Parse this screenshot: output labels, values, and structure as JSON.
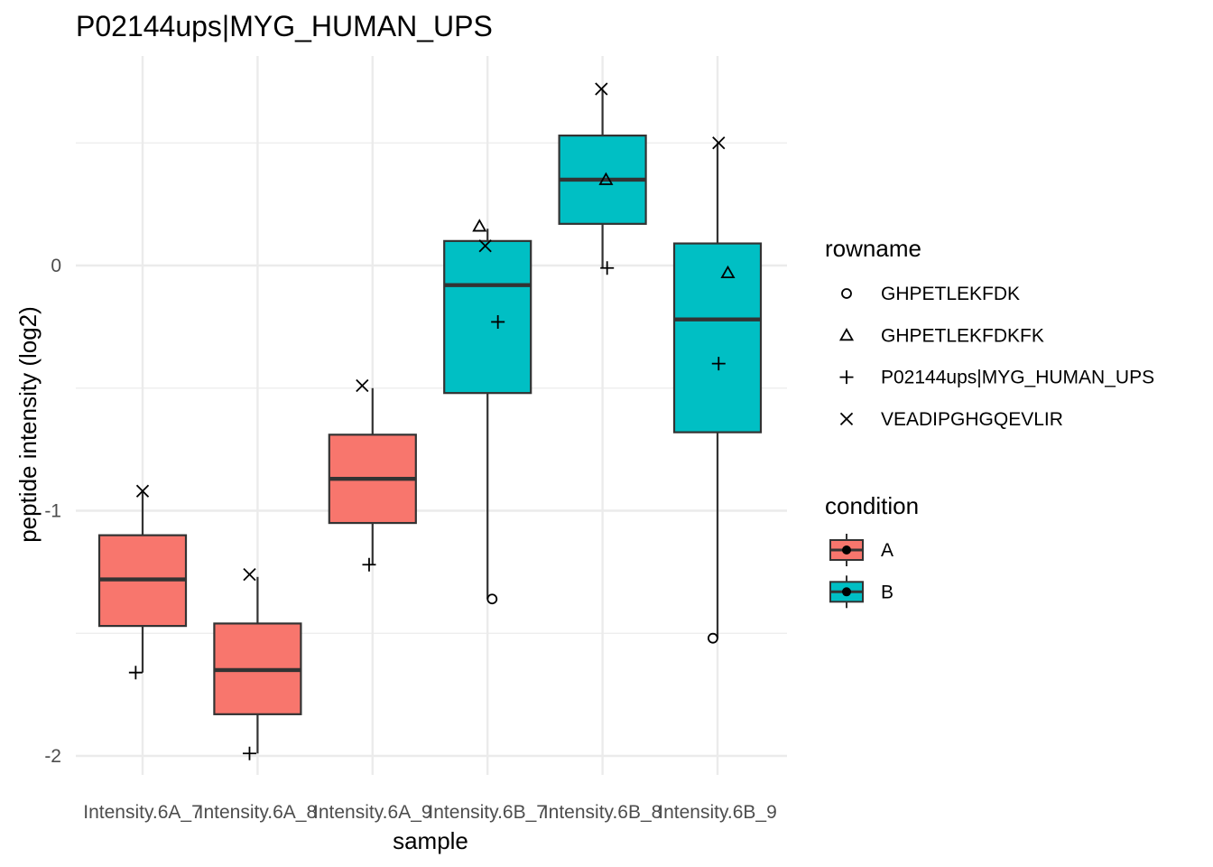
{
  "chart_data": {
    "type": "box",
    "title": "P02144ups|MYG_HUMAN_UPS",
    "xlabel": "sample",
    "ylabel": "peptide intensity (log2)",
    "ylim": [
      -2.1,
      0.85
    ],
    "yticks": [
      0,
      -1,
      -2
    ],
    "ytick_labels": [
      "0",
      "-1",
      "-2"
    ],
    "grid": true,
    "categories": [
      "Intensity.6A_7",
      "Intensity.6A_8",
      "Intensity.6A_9",
      "Intensity.6B_7",
      "Intensity.6B_8",
      "Intensity.6B_9"
    ],
    "boxes": [
      {
        "sample": "Intensity.6A_7",
        "condition": "A",
        "whisker_low": -1.66,
        "q1": -1.47,
        "median": -1.28,
        "q3": -1.1,
        "whisker_high": -0.92
      },
      {
        "sample": "Intensity.6A_8",
        "condition": "A",
        "whisker_low": -1.99,
        "q1": -1.83,
        "median": -1.65,
        "q3": -1.46,
        "whisker_high": -1.27
      },
      {
        "sample": "Intensity.6A_9",
        "condition": "A",
        "whisker_low": -1.22,
        "q1": -1.05,
        "median": -0.87,
        "q3": -0.69,
        "whisker_high": -0.5
      },
      {
        "sample": "Intensity.6B_7",
        "condition": "B",
        "whisker_low": -1.36,
        "q1": -0.52,
        "median": -0.08,
        "q3": 0.1,
        "whisker_high": 0.15
      },
      {
        "sample": "Intensity.6B_8",
        "condition": "B",
        "whisker_low": -0.01,
        "q1": 0.17,
        "median": 0.35,
        "q3": 0.53,
        "whisker_high": 0.72
      },
      {
        "sample": "Intensity.6B_9",
        "condition": "B",
        "whisker_low": -1.52,
        "q1": -0.68,
        "median": -0.22,
        "q3": 0.09,
        "whisker_high": 0.5
      }
    ],
    "points": [
      {
        "sample": "Intensity.6A_7",
        "rowname": "VEADIPGHGQEVLIR",
        "y": -0.92,
        "jitter": 0.0
      },
      {
        "sample": "Intensity.6A_7",
        "rowname": "P02144ups|MYG_HUMAN_UPS",
        "y": -1.66,
        "jitter": -0.06
      },
      {
        "sample": "Intensity.6A_8",
        "rowname": "VEADIPGHGQEVLIR",
        "y": -1.26,
        "jitter": -0.07
      },
      {
        "sample": "Intensity.6A_8",
        "rowname": "P02144ups|MYG_HUMAN_UPS",
        "y": -1.99,
        "jitter": -0.07
      },
      {
        "sample": "Intensity.6A_9",
        "rowname": "VEADIPGHGQEVLIR",
        "y": -0.49,
        "jitter": -0.09
      },
      {
        "sample": "Intensity.6A_9",
        "rowname": "P02144ups|MYG_HUMAN_UPS",
        "y": -1.22,
        "jitter": -0.03
      },
      {
        "sample": "Intensity.6B_7",
        "rowname": "GHPETLEKFDKFK",
        "y": 0.16,
        "jitter": -0.07
      },
      {
        "sample": "Intensity.6B_7",
        "rowname": "VEADIPGHGQEVLIR",
        "y": 0.08,
        "jitter": -0.02
      },
      {
        "sample": "Intensity.6B_7",
        "rowname": "P02144ups|MYG_HUMAN_UPS",
        "y": -0.23,
        "jitter": 0.09
      },
      {
        "sample": "Intensity.6B_7",
        "rowname": "GHPETLEKFDK",
        "y": -1.36,
        "jitter": 0.04
      },
      {
        "sample": "Intensity.6B_8",
        "rowname": "VEADIPGHGQEVLIR",
        "y": 0.72,
        "jitter": -0.01
      },
      {
        "sample": "Intensity.6B_8",
        "rowname": "GHPETLEKFDKFK",
        "y": 0.35,
        "jitter": 0.03
      },
      {
        "sample": "Intensity.6B_8",
        "rowname": "P02144ups|MYG_HUMAN_UPS",
        "y": -0.01,
        "jitter": 0.04
      },
      {
        "sample": "Intensity.6B_9",
        "rowname": "VEADIPGHGQEVLIR",
        "y": 0.5,
        "jitter": 0.01
      },
      {
        "sample": "Intensity.6B_9",
        "rowname": "GHPETLEKFDKFK",
        "y": -0.03,
        "jitter": 0.09
      },
      {
        "sample": "Intensity.6B_9",
        "rowname": "P02144ups|MYG_HUMAN_UPS",
        "y": -0.4,
        "jitter": 0.01
      },
      {
        "sample": "Intensity.6B_9",
        "rowname": "GHPETLEKFDK",
        "y": -1.52,
        "jitter": -0.04
      }
    ],
    "legend_placement": "right",
    "legend_rowname": {
      "title": "rowname",
      "entries": [
        {
          "label": "GHPETLEKFDK",
          "shape": "circle"
        },
        {
          "label": "GHPETLEKFDKFK",
          "shape": "triangle"
        },
        {
          "label": "P02144ups|MYG_HUMAN_UPS",
          "shape": "plus"
        },
        {
          "label": "VEADIPGHGQEVLIR",
          "shape": "cross"
        }
      ]
    },
    "legend_condition": {
      "title": "condition",
      "entries": [
        {
          "label": "A",
          "color": "#F8766D"
        },
        {
          "label": "B",
          "color": "#00BFC4"
        }
      ]
    },
    "colors": {
      "A": "#F8766D",
      "B": "#00BFC4",
      "grid": "#ebebeb",
      "box_line": "#333333"
    }
  }
}
